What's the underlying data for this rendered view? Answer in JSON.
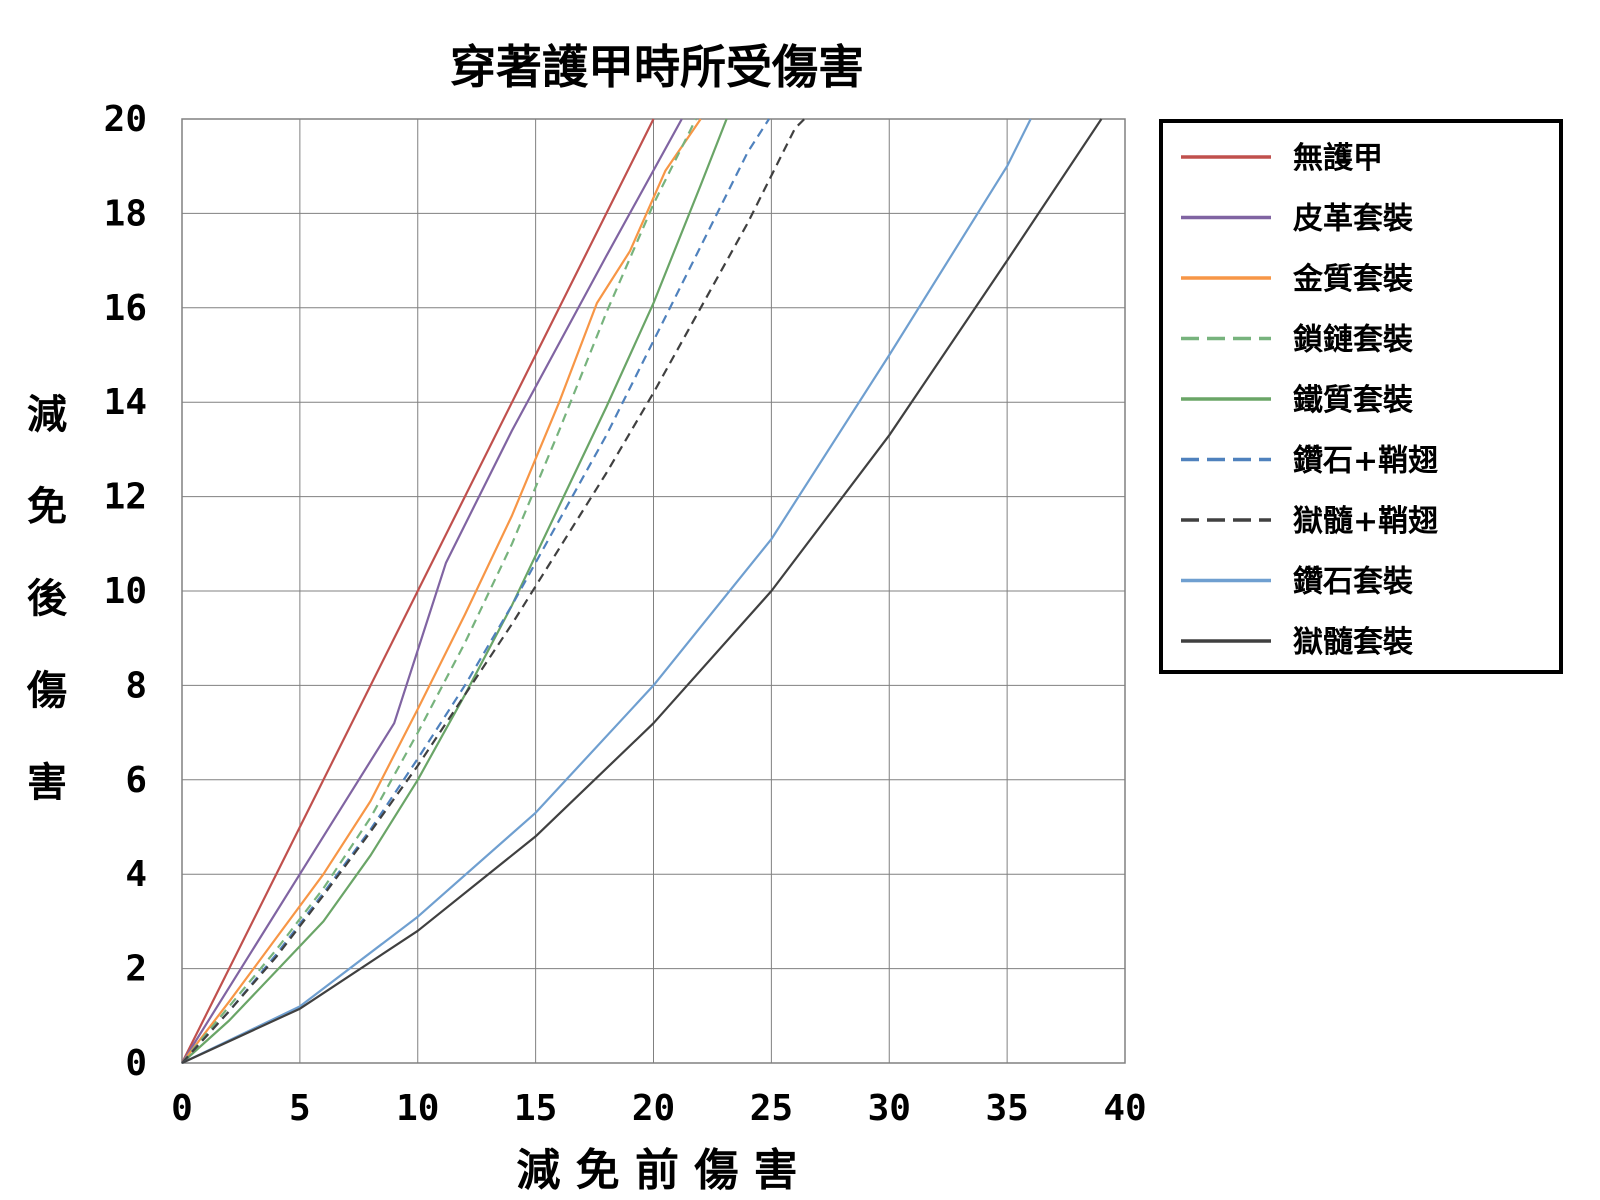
{
  "chart_data": {
    "type": "line",
    "title": "穿著護甲時所受傷害",
    "xlabel": "減 免 前 傷 害",
    "ylabel": "減免後傷害",
    "xlim": [
      0,
      40
    ],
    "ylim": [
      0,
      20
    ],
    "xticks": [
      "0",
      "5",
      "10",
      "15",
      "20",
      "25",
      "30",
      "35",
      "40"
    ],
    "yticks": [
      "0",
      "2",
      "4",
      "6",
      "8",
      "10",
      "12",
      "14",
      "16",
      "18",
      "20"
    ],
    "grid": true,
    "legend_position": "right",
    "series": [
      {
        "name": "無護甲",
        "color": "#c0504d",
        "dash": false,
        "points": [
          [
            0,
            0
          ],
          [
            20,
            20
          ]
        ]
      },
      {
        "name": "皮革套裝",
        "color": "#8064a2",
        "dash": false,
        "points": [
          [
            0,
            0
          ],
          [
            3,
            2.4
          ],
          [
            6,
            4.8
          ],
          [
            9,
            7.2
          ],
          [
            11.2,
            10.6
          ],
          [
            14,
            13.4
          ],
          [
            18,
            17.1
          ],
          [
            21.2,
            20
          ]
        ]
      },
      {
        "name": "金質套裝",
        "color": "#f79646",
        "dash": false,
        "points": [
          [
            0,
            0
          ],
          [
            2,
            1.3
          ],
          [
            4,
            2.65
          ],
          [
            6,
            4.0
          ],
          [
            8,
            5.55
          ],
          [
            10,
            7.5
          ],
          [
            12,
            9.5
          ],
          [
            14,
            11.6
          ],
          [
            16,
            14.0
          ],
          [
            17.6,
            16.1
          ],
          [
            19,
            17.2
          ],
          [
            20.5,
            18.9
          ],
          [
            22,
            20
          ]
        ]
      },
      {
        "name": "鎖鏈套裝",
        "color": "#77b37d",
        "dash": true,
        "points": [
          [
            0,
            0
          ],
          [
            2,
            1.2
          ],
          [
            4,
            2.4
          ],
          [
            6,
            3.7
          ],
          [
            8,
            5.2
          ],
          [
            10,
            7.0
          ],
          [
            12,
            8.9
          ],
          [
            14,
            11.0
          ],
          [
            16,
            13.4
          ],
          [
            18,
            15.9
          ],
          [
            20,
            18.2
          ],
          [
            21.8,
            20
          ]
        ]
      },
      {
        "name": "鐵質套裝",
        "color": "#6aa567",
        "dash": false,
        "points": [
          [
            0,
            0
          ],
          [
            2,
            0.9
          ],
          [
            4,
            1.95
          ],
          [
            6,
            3.0
          ],
          [
            8,
            4.4
          ],
          [
            10,
            6.0
          ],
          [
            12,
            7.8
          ],
          [
            14,
            9.7
          ],
          [
            16,
            11.8
          ],
          [
            18,
            13.9
          ],
          [
            20,
            16.1
          ],
          [
            22,
            18.6
          ],
          [
            23.1,
            20
          ]
        ]
      },
      {
        "name": "鑽石+鞘翅",
        "color": "#4f81bd",
        "dash": true,
        "points": [
          [
            0,
            0
          ],
          [
            2,
            1.1
          ],
          [
            4,
            2.3
          ],
          [
            6,
            3.6
          ],
          [
            8,
            4.95
          ],
          [
            10,
            6.45
          ],
          [
            12,
            8.0
          ],
          [
            14,
            9.7
          ],
          [
            16,
            11.5
          ],
          [
            18,
            13.3
          ],
          [
            20,
            15.3
          ],
          [
            22,
            17.3
          ],
          [
            24,
            19.3
          ],
          [
            24.9,
            20
          ]
        ]
      },
      {
        "name": "獄髓+鞘翅",
        "color": "#404040",
        "dash": true,
        "points": [
          [
            0,
            0
          ],
          [
            2,
            1.1
          ],
          [
            4,
            2.25
          ],
          [
            6,
            3.55
          ],
          [
            8,
            4.9
          ],
          [
            10,
            6.3
          ],
          [
            12,
            7.8
          ],
          [
            14,
            9.3
          ],
          [
            16,
            10.9
          ],
          [
            18,
            12.5
          ],
          [
            20,
            14.2
          ],
          [
            22,
            16.0
          ],
          [
            24,
            17.8
          ],
          [
            26,
            19.8
          ],
          [
            26.4,
            20
          ]
        ]
      },
      {
        "name": "鑽石套裝",
        "color": "#6f9fd0",
        "dash": false,
        "points": [
          [
            0,
            0
          ],
          [
            5,
            1.2
          ],
          [
            10,
            3.1
          ],
          [
            15,
            5.3
          ],
          [
            20,
            8.0
          ],
          [
            25,
            11.1
          ],
          [
            30,
            15.0
          ],
          [
            35,
            19.0
          ],
          [
            36,
            20
          ]
        ]
      },
      {
        "name": "獄髓套裝",
        "color": "#404040",
        "dash": false,
        "points": [
          [
            0,
            0
          ],
          [
            5,
            1.15
          ],
          [
            10,
            2.8
          ],
          [
            15,
            4.8
          ],
          [
            20,
            7.2
          ],
          [
            25,
            10.0
          ],
          [
            30,
            13.3
          ],
          [
            35,
            17.0
          ],
          [
            39,
            20
          ]
        ]
      }
    ]
  }
}
